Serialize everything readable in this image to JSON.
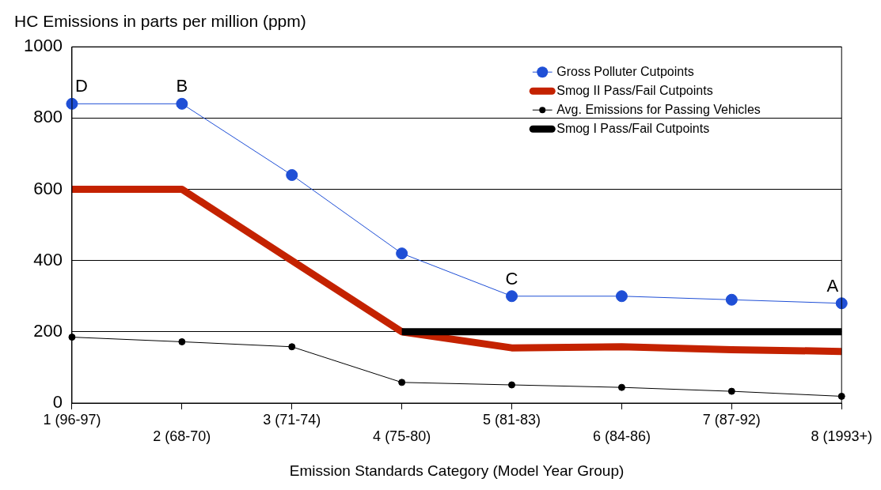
{
  "chart_data": {
    "type": "line",
    "ylabel": "HC Emissions in parts per million (ppm)",
    "xlabel": "Emission Standards Category (Model Year Group)",
    "categories": [
      "1 (96-97)",
      "2 (68-70)",
      "3 (71-74)",
      "4 (75-80)",
      "5 (81-83)",
      "6 (84-86)",
      "7 (87-92)",
      "8 (1993+)"
    ],
    "series": [
      {
        "name": "Gross Polluter Cutpoints",
        "color": "#1f4fd6",
        "marker": "circle",
        "values": [
          840,
          840,
          640,
          420,
          300,
          300,
          290,
          280
        ]
      },
      {
        "name": "Smog II Pass/Fail Cutpoints",
        "color": "#c42200",
        "marker": "none",
        "values": [
          600,
          600,
          400,
          200,
          155,
          158,
          150,
          145
        ]
      },
      {
        "name": "Avg. Emissions for Passing Vehicles",
        "color": "#000000",
        "marker": "circle",
        "values": [
          185,
          172,
          158,
          58,
          51,
          44,
          33,
          19
        ]
      },
      {
        "name": "Smog I Pass/Fail Cutpoints",
        "color": "#000000",
        "marker": "none",
        "values": [
          null,
          null,
          null,
          200,
          200,
          200,
          200,
          200
        ]
      }
    ],
    "ylim": [
      0,
      1000
    ],
    "yticks": [
      0,
      200,
      400,
      600,
      800,
      {
        "value": 1000,
        "label": "1000"
      }
    ],
    "grid": "y",
    "legend": "top right",
    "annotations": [
      {
        "text": "D",
        "x": "1 (96-97)",
        "y": 840
      },
      {
        "text": "B",
        "x": "2 (68-70)",
        "y": 840
      },
      {
        "text": "C",
        "x": "5 (81-83)",
        "y": 300
      },
      {
        "text": "A",
        "x": "8 (1993+)",
        "y": 280
      }
    ]
  }
}
